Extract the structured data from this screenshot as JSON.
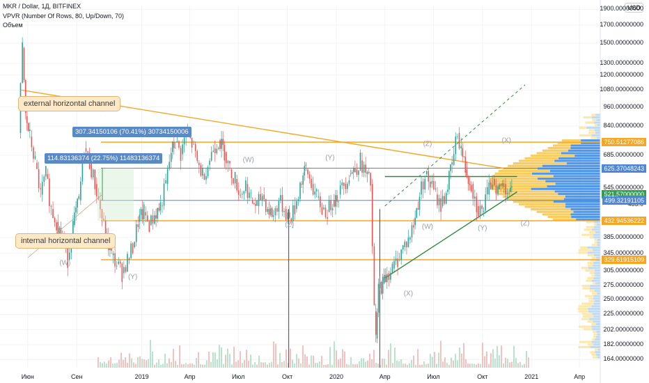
{
  "header": {
    "symbol_line": "MKR / Dollar, 1Д, BITFINEX",
    "indicator_line": "VPVR (Number Of Rows, 80, Up/Down, 70)",
    "volume_line": "Объем"
  },
  "currency_button": "USD",
  "annotations": {
    "external": "external horizontal channel",
    "internal": "internal horizontal channel",
    "measure_top": "307.34150106 (70.41%) 30734150006",
    "measure_bottom": "114.83136374 (22.75%) 11483136374"
  },
  "price_tags": [
    {
      "label": "750.51277086",
      "value": 750.51277086,
      "color": "#f5a623"
    },
    {
      "label": "625.37048243",
      "value": 625.37048243,
      "color": "#4f86d8"
    },
    {
      "label": "521.57000000",
      "value": 521.57,
      "color": "#2e9e4f"
    },
    {
      "label": "14:29:45",
      "value": 502,
      "color": "#2e9e4f"
    },
    {
      "label": "499.32191105",
      "value": 499.32191105,
      "color": "#4f86d8"
    },
    {
      "label": "432.94536222",
      "value": 432.94536222,
      "color": "#f5a623"
    },
    {
      "label": "329.61915109",
      "value": 329.61915109,
      "color": "#f5a623"
    }
  ],
  "chart_data": {
    "type": "line",
    "title": "MKR / Dollar, 1Д, BITFINEX",
    "y_scale": "log",
    "ylim": [
      155,
      1950
    ],
    "y_ticks": [
      "1900.00000000",
      "1700.00000000",
      "1500.00000000",
      "1300.00000000",
      "1200.00000000",
      "1080.00000000",
      "960.00000000",
      "840.00000000",
      "685.00000000",
      "545.00000000",
      "485.0",
      "385.00000000",
      "345.00000000",
      "305.00000000",
      "275.00000000",
      "250.00000000",
      "225.00000000",
      "202.00000000",
      "182.00000000",
      "164.00000000"
    ],
    "y_tick_values": [
      1900,
      1700,
      1500,
      1300,
      1200,
      1080,
      960,
      840,
      685,
      545,
      485,
      385,
      345,
      305,
      275,
      250,
      225,
      202,
      182,
      164
    ],
    "x_ticks": [
      "Июн",
      "Сен",
      "2019",
      "Апр",
      "Июл",
      "Окт",
      "2020",
      "Апр",
      "Июл",
      "Окт",
      "2021",
      "Апр"
    ],
    "x_tick_dates": [
      "2018-06-01",
      "2018-09-01",
      "2019-01-01",
      "2019-04-01",
      "2019-07-01",
      "2019-10-01",
      "2020-01-01",
      "2020-04-01",
      "2020-07-01",
      "2020-10-01",
      "2021-01-01",
      "2021-04-01"
    ],
    "horizontal_levels": [
      {
        "value": 750.51277086,
        "color": "#f5a623"
      },
      {
        "value": 625.37048243,
        "color": "#4f86d8"
      },
      {
        "value": 499.32191105,
        "color": "#4f86d8"
      },
      {
        "value": 432.94536222,
        "color": "#f5a623"
      },
      {
        "value": 329.61915109,
        "color": "#f5a623"
      }
    ],
    "trendlines": [
      {
        "from": [
          "2018-05-20",
          1080
        ],
        "to": [
          "2020-11-10",
          625
        ],
        "color": "#f5a623"
      },
      {
        "from": [
          "2020-04-01",
          290
        ],
        "to": [
          "2020-12-05",
          530
        ],
        "color": "#2e8b3a"
      },
      {
        "from": [
          "2020-04-01",
          590
        ],
        "to": [
          "2020-12-05",
          590
        ],
        "color": "#2e8b3a"
      }
    ],
    "wave_labels": [
      {
        "text": "(W)",
        "date": "2018-08-10",
        "value": 322
      },
      {
        "text": "(Y)",
        "date": "2018-12-15",
        "value": 292
      },
      {
        "text": "(W)",
        "date": "2019-07-20",
        "value": 660
      },
      {
        "text": "(Y)",
        "date": "2019-12-20",
        "value": 670
      },
      {
        "text": "(Z)",
        "date": "2019-10-05",
        "value": 420
      },
      {
        "text": "(Z)",
        "date": "2020-06-20",
        "value": 740
      },
      {
        "text": "(X)",
        "date": "2020-05-15",
        "value": 260
      },
      {
        "text": "(W)",
        "date": "2020-06-20",
        "value": 415
      },
      {
        "text": "(Y)",
        "date": "2020-10-01",
        "value": 410
      },
      {
        "text": "(X)",
        "date": "2020-11-15",
        "value": 760
      },
      {
        "text": "(Z)",
        "date": "2020-12-20",
        "value": 425
      }
    ],
    "price_series": [
      {
        "date": "2018-05-15",
        "value": 800
      },
      {
        "date": "2018-05-22",
        "value": 1450
      },
      {
        "date": "2018-05-28",
        "value": 900
      },
      {
        "date": "2018-06-05",
        "value": 780
      },
      {
        "date": "2018-06-15",
        "value": 650
      },
      {
        "date": "2018-06-25",
        "value": 520
      },
      {
        "date": "2018-07-05",
        "value": 600
      },
      {
        "date": "2018-07-15",
        "value": 470
      },
      {
        "date": "2018-07-25",
        "value": 430
      },
      {
        "date": "2018-08-05",
        "value": 380
      },
      {
        "date": "2018-08-15",
        "value": 330
      },
      {
        "date": "2018-08-25",
        "value": 420
      },
      {
        "date": "2018-09-05",
        "value": 500
      },
      {
        "date": "2018-09-15",
        "value": 720
      },
      {
        "date": "2018-09-25",
        "value": 650
      },
      {
        "date": "2018-10-05",
        "value": 560
      },
      {
        "date": "2018-10-15",
        "value": 470
      },
      {
        "date": "2018-10-25",
        "value": 390
      },
      {
        "date": "2018-11-05",
        "value": 340
      },
      {
        "date": "2018-11-15",
        "value": 320
      },
      {
        "date": "2018-11-25",
        "value": 300
      },
      {
        "date": "2018-12-05",
        "value": 330
      },
      {
        "date": "2018-12-15",
        "value": 360
      },
      {
        "date": "2018-12-25",
        "value": 430
      },
      {
        "date": "2019-01-05",
        "value": 460
      },
      {
        "date": "2019-01-15",
        "value": 420
      },
      {
        "date": "2019-01-25",
        "value": 450
      },
      {
        "date": "2019-02-05",
        "value": 480
      },
      {
        "date": "2019-02-15",
        "value": 560
      },
      {
        "date": "2019-02-25",
        "value": 700
      },
      {
        "date": "2019-03-05",
        "value": 750
      },
      {
        "date": "2019-03-15",
        "value": 690
      },
      {
        "date": "2019-03-25",
        "value": 800
      },
      {
        "date": "2019-04-05",
        "value": 740
      },
      {
        "date": "2019-04-15",
        "value": 650
      },
      {
        "date": "2019-04-25",
        "value": 600
      },
      {
        "date": "2019-05-05",
        "value": 640
      },
      {
        "date": "2019-05-15",
        "value": 720
      },
      {
        "date": "2019-05-25",
        "value": 760
      },
      {
        "date": "2019-06-05",
        "value": 700
      },
      {
        "date": "2019-06-15",
        "value": 620
      },
      {
        "date": "2019-06-25",
        "value": 580
      },
      {
        "date": "2019-07-05",
        "value": 520
      },
      {
        "date": "2019-07-15",
        "value": 560
      },
      {
        "date": "2019-07-25",
        "value": 500
      },
      {
        "date": "2019-08-05",
        "value": 480
      },
      {
        "date": "2019-08-15",
        "value": 520
      },
      {
        "date": "2019-08-25",
        "value": 470
      },
      {
        "date": "2019-09-05",
        "value": 450
      },
      {
        "date": "2019-09-15",
        "value": 500
      },
      {
        "date": "2019-09-25",
        "value": 470
      },
      {
        "date": "2019-10-05",
        "value": 440
      },
      {
        "date": "2019-10-15",
        "value": 470
      },
      {
        "date": "2019-10-25",
        "value": 560
      },
      {
        "date": "2019-11-05",
        "value": 620
      },
      {
        "date": "2019-11-15",
        "value": 560
      },
      {
        "date": "2019-11-25",
        "value": 510
      },
      {
        "date": "2019-12-05",
        "value": 470
      },
      {
        "date": "2019-12-15",
        "value": 460
      },
      {
        "date": "2019-12-25",
        "value": 500
      },
      {
        "date": "2020-01-05",
        "value": 520
      },
      {
        "date": "2020-01-15",
        "value": 560
      },
      {
        "date": "2020-01-25",
        "value": 600
      },
      {
        "date": "2020-02-05",
        "value": 620
      },
      {
        "date": "2020-02-15",
        "value": 660
      },
      {
        "date": "2020-02-25",
        "value": 600
      },
      {
        "date": "2020-03-05",
        "value": 560
      },
      {
        "date": "2020-03-12",
        "value": 230
      },
      {
        "date": "2020-03-15",
        "value": 190
      },
      {
        "date": "2020-03-20",
        "value": 270
      },
      {
        "date": "2020-03-28",
        "value": 280
      },
      {
        "date": "2020-04-05",
        "value": 300
      },
      {
        "date": "2020-04-15",
        "value": 310
      },
      {
        "date": "2020-04-25",
        "value": 330
      },
      {
        "date": "2020-05-05",
        "value": 360
      },
      {
        "date": "2020-05-15",
        "value": 380
      },
      {
        "date": "2020-05-25",
        "value": 420
      },
      {
        "date": "2020-06-05",
        "value": 520
      },
      {
        "date": "2020-06-15",
        "value": 600
      },
      {
        "date": "2020-06-25",
        "value": 560
      },
      {
        "date": "2020-07-05",
        "value": 520
      },
      {
        "date": "2020-07-15",
        "value": 480
      },
      {
        "date": "2020-07-25",
        "value": 530
      },
      {
        "date": "2020-08-05",
        "value": 640
      },
      {
        "date": "2020-08-15",
        "value": 800
      },
      {
        "date": "2020-08-22",
        "value": 720
      },
      {
        "date": "2020-08-30",
        "value": 620
      },
      {
        "date": "2020-09-10",
        "value": 560
      },
      {
        "date": "2020-09-20",
        "value": 480
      },
      {
        "date": "2020-09-30",
        "value": 460
      },
      {
        "date": "2020-10-10",
        "value": 520
      },
      {
        "date": "2020-10-20",
        "value": 580
      },
      {
        "date": "2020-10-30",
        "value": 540
      },
      {
        "date": "2020-11-10",
        "value": 560
      },
      {
        "date": "2020-11-20",
        "value": 530
      },
      {
        "date": "2020-11-25",
        "value": 521.57
      }
    ],
    "volume_profile_note": "VPVR histogram on the right side, orange and blue bars"
  }
}
